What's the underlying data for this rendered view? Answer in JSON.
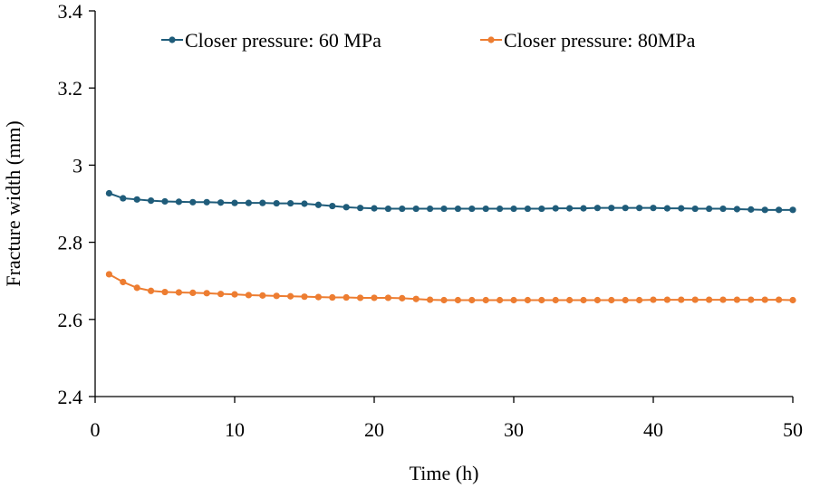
{
  "chart_data": {
    "type": "line",
    "title": "",
    "xlabel": "Time (h)",
    "ylabel": "Fracture width (mm)",
    "xlim": [
      0,
      50
    ],
    "ylim": [
      2.4,
      3.4
    ],
    "xticks": [
      0,
      10,
      20,
      30,
      40,
      50
    ],
    "xtick_labels": [
      "0",
      "10",
      "20",
      "30",
      "40",
      "50"
    ],
    "yticks": [
      2.4,
      2.6,
      2.8,
      3.0,
      3.2,
      3.4
    ],
    "ytick_labels": [
      "2.4",
      "2.6",
      "2.8",
      "3",
      "3.2",
      "3.4"
    ],
    "grid": false,
    "legend_position": "top",
    "x": [
      1,
      2,
      3,
      4,
      5,
      6,
      7,
      8,
      9,
      10,
      11,
      12,
      13,
      14,
      15,
      16,
      17,
      18,
      19,
      20,
      21,
      22,
      23,
      24,
      25,
      26,
      27,
      28,
      29,
      30,
      31,
      32,
      33,
      34,
      35,
      36,
      37,
      38,
      39,
      40,
      41,
      42,
      43,
      44,
      45,
      46,
      47,
      48,
      49,
      50
    ],
    "series": [
      {
        "name": "Closer pressure: 60 MPa",
        "color": "#1f5c7a",
        "values": [
          2.927,
          2.914,
          2.911,
          2.908,
          2.906,
          2.905,
          2.904,
          2.904,
          2.903,
          2.902,
          2.902,
          2.902,
          2.901,
          2.901,
          2.9,
          2.897,
          2.894,
          2.891,
          2.889,
          2.888,
          2.887,
          2.887,
          2.887,
          2.887,
          2.887,
          2.887,
          2.887,
          2.887,
          2.887,
          2.887,
          2.887,
          2.887,
          2.888,
          2.888,
          2.888,
          2.889,
          2.889,
          2.889,
          2.889,
          2.889,
          2.888,
          2.888,
          2.887,
          2.887,
          2.887,
          2.886,
          2.885,
          2.884,
          2.884,
          2.884
        ]
      },
      {
        "name": "Closer pressure: 80MPa",
        "color": "#ed7d31",
        "values": [
          2.717,
          2.697,
          2.682,
          2.674,
          2.671,
          2.67,
          2.669,
          2.668,
          2.666,
          2.665,
          2.663,
          2.662,
          2.661,
          2.66,
          2.659,
          2.658,
          2.657,
          2.657,
          2.656,
          2.656,
          2.656,
          2.655,
          2.653,
          2.651,
          2.65,
          2.65,
          2.65,
          2.65,
          2.65,
          2.65,
          2.65,
          2.65,
          2.65,
          2.65,
          2.65,
          2.65,
          2.65,
          2.65,
          2.65,
          2.651,
          2.651,
          2.651,
          2.651,
          2.651,
          2.651,
          2.651,
          2.651,
          2.651,
          2.651,
          2.65
        ]
      }
    ]
  }
}
